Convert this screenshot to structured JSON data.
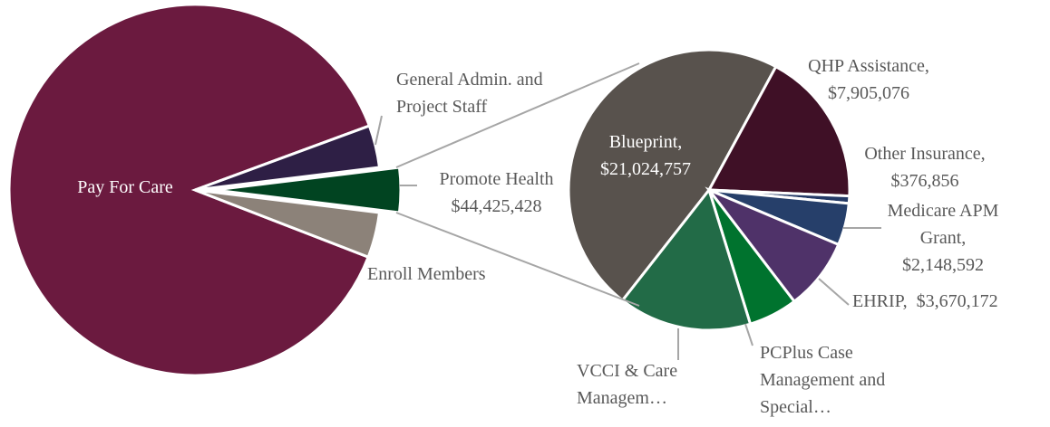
{
  "chart_data": [
    {
      "type": "pie",
      "categories": [
        "Pay For Care",
        "General Admin. and Project Staff",
        "Promote Health",
        "Enroll Members"
      ],
      "values": [
        1010000000,
        42000000,
        44425428,
        45000000
      ],
      "value_labels": [
        null,
        null,
        "$44,425,428",
        null
      ],
      "colors": [
        "#6b1a3f",
        "#2e1f45",
        "#014421",
        "#8c8279"
      ],
      "exploded": "Promote Health"
    },
    {
      "type": "pie",
      "categories": [
        "Blueprint,",
        "QHP Assistance,",
        "Other Insurance,",
        "Medicare APM Grant,",
        "EHRIP,",
        "PCPlus Case Management and Special…",
        "VCCI & Care Managem…"
      ],
      "values": [
        21024757,
        7905076,
        376856,
        2148592,
        3670172,
        2500000,
        6800000
      ],
      "value_labels": [
        "$21,024,757",
        "$7,905,076",
        "$376,856",
        "$2,148,592",
        "$3,670,172",
        null,
        null
      ],
      "colors": [
        "#58524d",
        "#3f1026",
        "#243a66",
        "#263f6a",
        "#4f3269",
        "#00732e",
        "#226b47"
      ]
    }
  ]
}
